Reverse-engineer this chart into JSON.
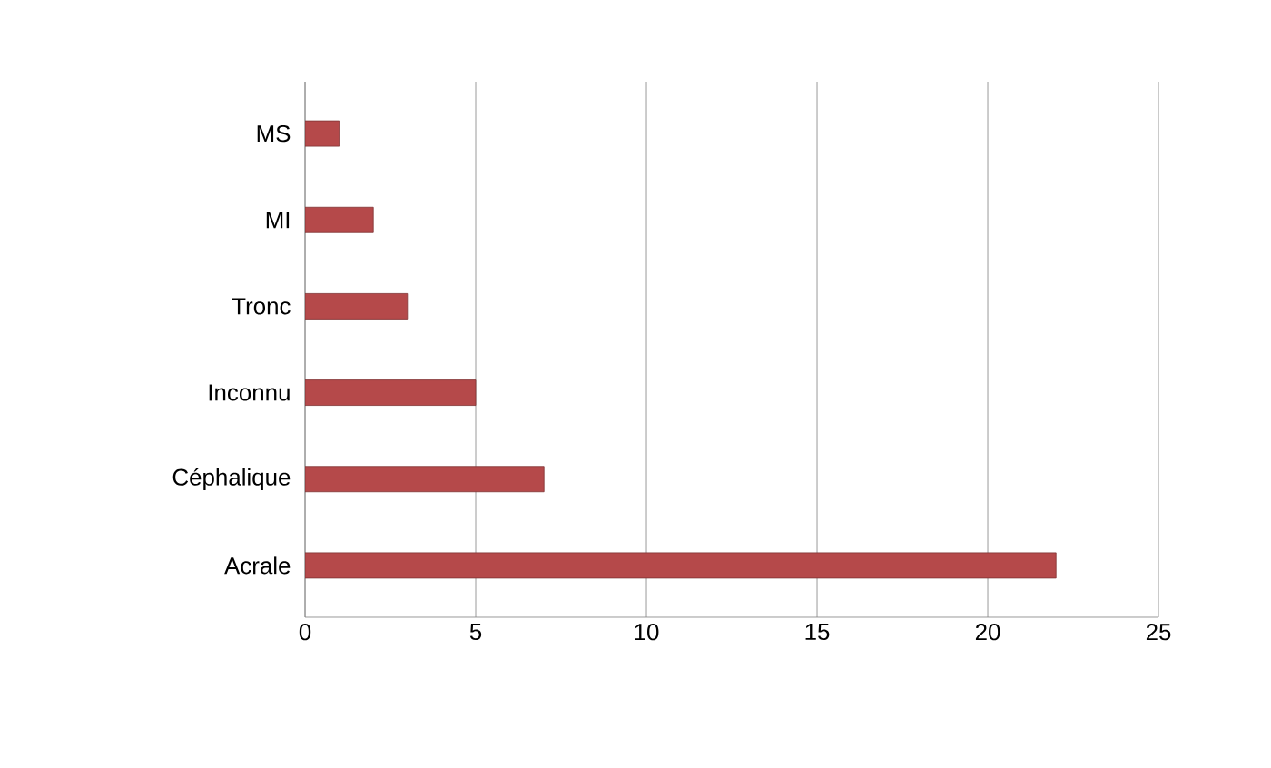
{
  "chart_data": {
    "type": "bar",
    "orientation": "horizontal",
    "categories": [
      "MS",
      "MI",
      "Tronc",
      "Inconnu",
      "Céphalique",
      "Acrale"
    ],
    "values": [
      1,
      2,
      3,
      5,
      7,
      22
    ],
    "color": "#b5494a",
    "xlim": [
      0,
      25
    ],
    "xticks": [
      0,
      5,
      10,
      15,
      20,
      25
    ],
    "grid": "x"
  }
}
